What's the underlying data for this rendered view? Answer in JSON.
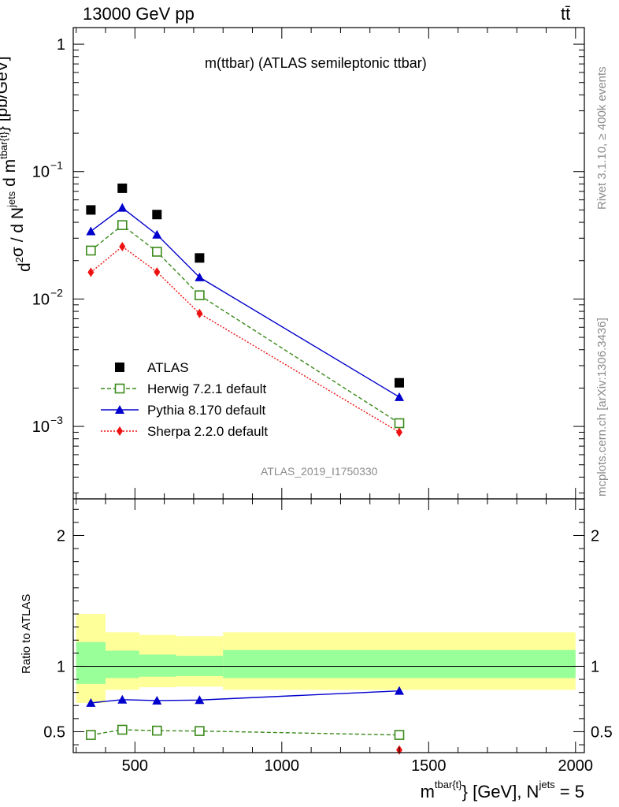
{
  "header": {
    "energy_label": "13000 GeV pp",
    "process_label": "tt̄"
  },
  "side_labels": {
    "rivet": "Rivet 3.1.10, ≥ 400k events",
    "mcplots": "mcplots.cern.ch [arXiv:1306.3436]"
  },
  "chart_data": [
    {
      "type": "line",
      "title": "m(ttbar) (ATLAS semileptonic ttbar)",
      "watermark": "ATLAS_2019_I1750330",
      "ylabel": "d²σ / d N^{jets} d m^{tbar{t}} [pb/GeV]",
      "xlim": [
        290,
        2030
      ],
      "ylim": [
        0.00027,
        1.35
      ],
      "yscale": "log",
      "y_tick_labels": [
        "10^-3",
        "10^-2",
        "10^-1",
        "1"
      ],
      "x": [
        350,
        457,
        575,
        720,
        1400
      ],
      "series": [
        {
          "name": "ATLAS",
          "style": "square-filled",
          "color": "#000000",
          "values": [
            0.05,
            0.074,
            0.046,
            0.021,
            0.0022
          ]
        },
        {
          "name": "Herwig 7.2.1 default",
          "style": "square-open-dashed",
          "color": "#3a8a1a",
          "values": [
            0.024,
            0.038,
            0.0235,
            0.0107,
            0.00106
          ]
        },
        {
          "name": "Pythia 8.170 default",
          "style": "triangle-solid",
          "color": "#0000cc",
          "values": [
            0.034,
            0.052,
            0.032,
            0.0148,
            0.0017
          ]
        },
        {
          "name": "Sherpa 2.2.0 default",
          "style": "diamond-dotted",
          "color": "#ee1111",
          "values": [
            0.0162,
            0.0258,
            0.0163,
            0.0077,
            0.0009
          ]
        }
      ],
      "legend_placement": "bottom-left"
    },
    {
      "type": "line",
      "ylabel": "Ratio to ATLAS",
      "xlabel": "m^{tbar{t}} [GeV], N^{jets} = 5",
      "xlim": [
        290,
        2030
      ],
      "ylim": [
        0.34,
        2.28
      ],
      "x_ticks": [
        500,
        1000,
        1500,
        2000
      ],
      "y_ticks": [
        0.5,
        1,
        2
      ],
      "bands": [
        {
          "x0": 300,
          "x1": 400,
          "inner": [
            0.865,
            1.185
          ],
          "outer": [
            0.72,
            1.4
          ]
        },
        {
          "x0": 400,
          "x1": 515,
          "inner": [
            0.91,
            1.12
          ],
          "outer": [
            0.82,
            1.26
          ]
        },
        {
          "x0": 515,
          "x1": 640,
          "inner": [
            0.92,
            1.09
          ],
          "outer": [
            0.84,
            1.24
          ]
        },
        {
          "x0": 640,
          "x1": 800,
          "inner": [
            0.925,
            1.08
          ],
          "outer": [
            0.845,
            1.23
          ]
        },
        {
          "x0": 800,
          "x1": 2000,
          "inner": [
            0.91,
            1.125
          ],
          "outer": [
            0.82,
            1.26
          ]
        }
      ],
      "band_colors": {
        "inner": "#99ff99",
        "outer": "#ffff99"
      },
      "x": [
        350,
        457,
        575,
        720,
        1400
      ],
      "series": [
        {
          "name": "Herwig 7.2.1 default",
          "style": "square-open-dashed",
          "color": "#3a8a1a",
          "values": [
            0.475,
            0.515,
            0.508,
            0.505,
            0.475
          ]
        },
        {
          "name": "Pythia 8.170 default",
          "style": "triangle-solid",
          "color": "#0000cc",
          "values": [
            0.72,
            0.745,
            0.738,
            0.742,
            0.812
          ]
        },
        {
          "name": "Sherpa 2.2.0 default",
          "style": "diamond-dotted",
          "color": "#ee1111",
          "values": [
            null,
            null,
            null,
            null,
            0.36
          ]
        }
      ]
    }
  ]
}
